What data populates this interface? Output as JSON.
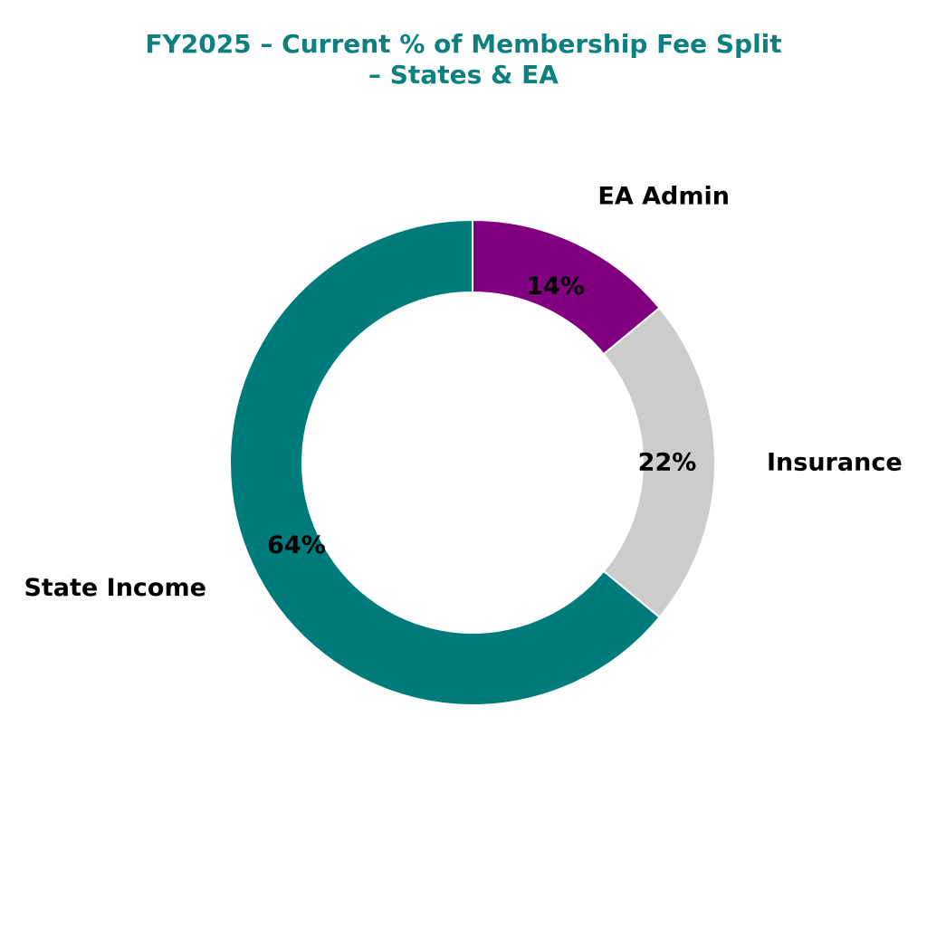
{
  "chart_data": {
    "type": "pie",
    "style": "donut",
    "title_lines": [
      "FY2025 – Current % of Membership Fee Split",
      "– States & EA"
    ],
    "slices": [
      {
        "name": "EA Admin",
        "value": 14,
        "label": "14%",
        "color": "#800080"
      },
      {
        "name": "Insurance",
        "value": 22,
        "label": "22%",
        "color": "#cccccc"
      },
      {
        "name": "State Income",
        "value": 64,
        "label": "64%",
        "color": "#007b7b"
      }
    ],
    "start_angle": "12 o'clock",
    "direction": "clockwise",
    "legend": "none"
  },
  "colors": {
    "title": "#0f8080",
    "background": "#ffffff",
    "slice_border": "#ffffff"
  }
}
